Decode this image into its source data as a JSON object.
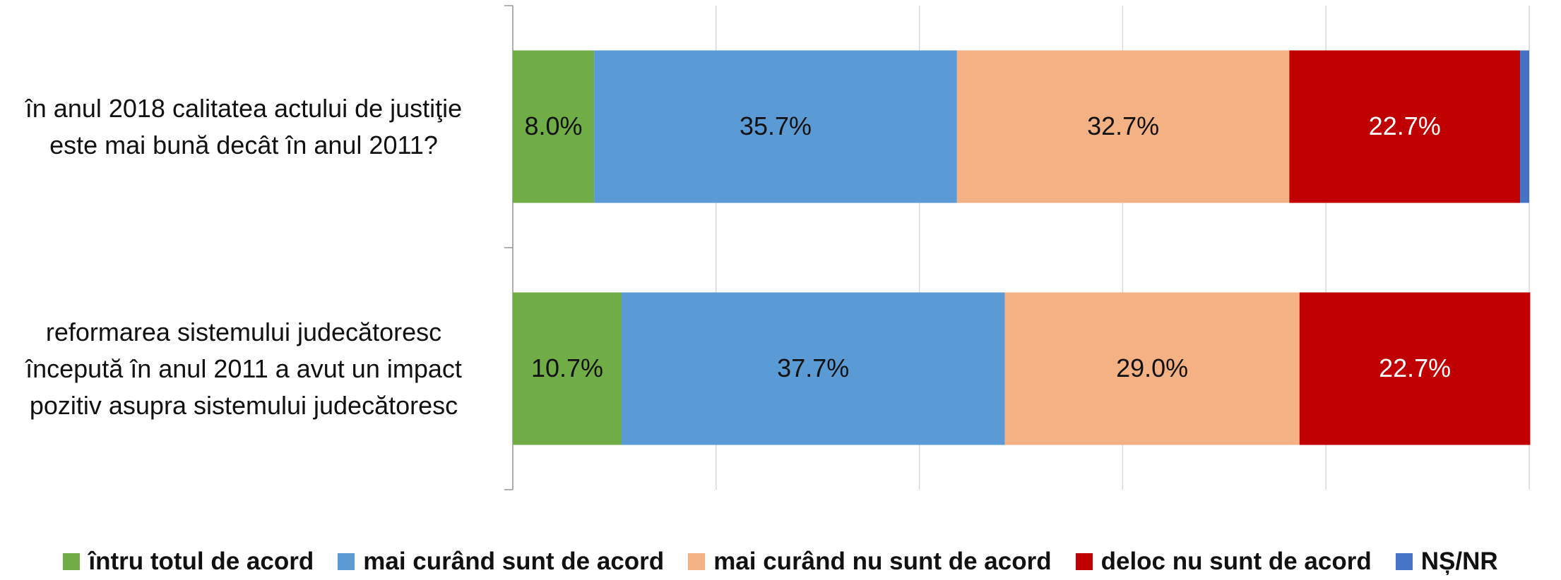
{
  "chart_data": {
    "type": "stacked_barh",
    "categories": [
      "în anul 2018 calitatea actului de justiţie este mai bună decât în anul 2011?",
      "reformarea sistemului judecătoresc începută în anul 2011 a avut un impact pozitiv asupra sistemului judecătoresc"
    ],
    "series": [
      {
        "name": "întru totul de acord",
        "color": "#70ad47",
        "values": [
          8.0,
          10.7
        ],
        "value_labels": [
          "8.0%",
          "10.7%"
        ]
      },
      {
        "name": "mai curând sunt de acord",
        "color": "#5b9bd5",
        "values": [
          35.7,
          37.7
        ],
        "value_labels": [
          "35.7%",
          "37.7%"
        ]
      },
      {
        "name": "mai curând nu sunt de acord",
        "color": "#f4b183",
        "values": [
          32.7,
          29.0
        ],
        "value_labels": [
          "32.7%",
          "29.0%"
        ]
      },
      {
        "name": "deloc nu sunt de acord",
        "color": "#c00000",
        "values": [
          22.7,
          22.7
        ],
        "value_labels": [
          "22.7%",
          "22.7%"
        ]
      },
      {
        "name": "NȘ/NR",
        "color": "#4472c4",
        "values": [
          0.9,
          0
        ],
        "value_labels": [
          null,
          null
        ]
      }
    ],
    "xlim": [
      0,
      100
    ],
    "xticks": [
      0,
      20,
      40,
      60,
      80,
      100
    ],
    "grid": true,
    "legend": "bottom"
  }
}
